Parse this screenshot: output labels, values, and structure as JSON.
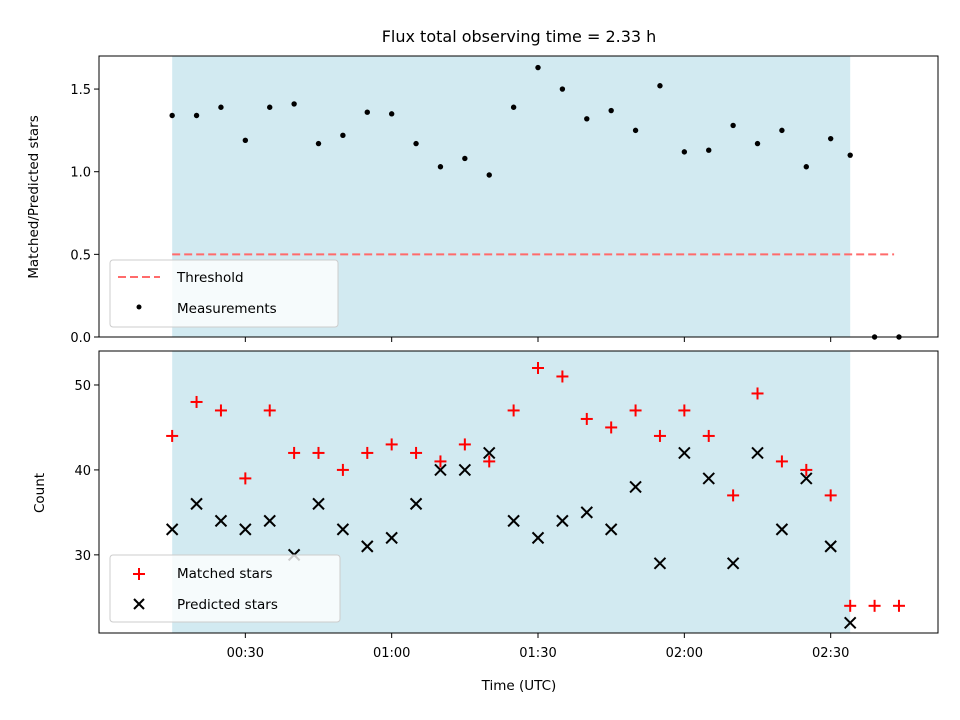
{
  "title": "Flux total observing time = 2.33 h",
  "colors": {
    "band": "#add8e6",
    "threshold": "#ff6b6b",
    "measurement": "#000000",
    "matched": "#ff0000",
    "predicted": "#000000"
  },
  "chart_data": [
    {
      "type": "scatter",
      "ylabel": "Matched/Predicted stars",
      "xlabel": "",
      "ylim": [
        0,
        1.7
      ],
      "yticks": [
        "0.0",
        "0.5",
        "1.0",
        "1.5"
      ],
      "grid": false,
      "legend_position": "lower-left",
      "shaded_band": {
        "x_start": "00:15",
        "x_end": "02:34"
      },
      "threshold": {
        "name": "Threshold",
        "value": 0.5,
        "x_start": "00:15",
        "x_end": "02:43"
      },
      "series": [
        {
          "name": "Measurements",
          "x": [
            "00:15",
            "00:20",
            "00:25",
            "00:30",
            "00:35",
            "00:40",
            "00:45",
            "00:50",
            "00:55",
            "01:00",
            "01:05",
            "01:10",
            "01:15",
            "01:20",
            "01:25",
            "01:30",
            "01:35",
            "01:40",
            "01:45",
            "01:50",
            "01:55",
            "02:00",
            "02:05",
            "02:10",
            "02:15",
            "02:20",
            "02:25",
            "02:30",
            "02:34",
            "02:39",
            "02:44"
          ],
          "values": [
            1.34,
            1.34,
            1.39,
            1.19,
            1.39,
            1.41,
            1.17,
            1.22,
            1.36,
            1.35,
            1.17,
            1.03,
            1.08,
            0.98,
            1.39,
            1.63,
            1.5,
            1.32,
            1.37,
            1.25,
            1.52,
            1.12,
            1.13,
            1.28,
            1.17,
            1.25,
            1.03,
            1.2,
            1.1,
            0.0,
            0.0
          ]
        }
      ]
    },
    {
      "type": "scatter",
      "ylabel": "Count",
      "xlabel": "Time (UTC)",
      "ylim": [
        20.8,
        54
      ],
      "yticks": [
        "30",
        "40",
        "50"
      ],
      "xticks": [
        "00:30",
        "01:00",
        "01:30",
        "02:00",
        "02:30"
      ],
      "grid": false,
      "legend_position": "lower-left",
      "shaded_band": {
        "x_start": "00:15",
        "x_end": "02:34"
      },
      "series": [
        {
          "name": "Matched stars",
          "x": [
            "00:15",
            "00:20",
            "00:25",
            "00:30",
            "00:35",
            "00:40",
            "00:45",
            "00:50",
            "00:55",
            "01:00",
            "01:05",
            "01:10",
            "01:15",
            "01:20",
            "01:25",
            "01:30",
            "01:35",
            "01:40",
            "01:45",
            "01:50",
            "01:55",
            "02:00",
            "02:05",
            "02:10",
            "02:15",
            "02:20",
            "02:25",
            "02:30",
            "02:34",
            "02:39",
            "02:44"
          ],
          "values": [
            44,
            48,
            47,
            39,
            47,
            42,
            42,
            40,
            42,
            43,
            42,
            41,
            43,
            41,
            47,
            52,
            51,
            46,
            45,
            47,
            44,
            47,
            44,
            37,
            49,
            41,
            40,
            37,
            24,
            24,
            24
          ]
        },
        {
          "name": "Predicted stars",
          "x": [
            "00:15",
            "00:20",
            "00:25",
            "00:30",
            "00:35",
            "00:40",
            "00:45",
            "00:50",
            "00:55",
            "01:00",
            "01:05",
            "01:10",
            "01:15",
            "01:20",
            "01:25",
            "01:30",
            "01:35",
            "01:40",
            "01:45",
            "01:50",
            "01:55",
            "02:00",
            "02:05",
            "02:10",
            "02:15",
            "02:20",
            "02:25",
            "02:30",
            "02:34"
          ],
          "values": [
            33,
            36,
            34,
            33,
            34,
            30,
            36,
            33,
            31,
            32,
            36,
            40,
            40,
            42,
            34,
            32,
            34,
            35,
            33,
            38,
            29,
            42,
            39,
            29,
            42,
            33,
            39,
            31,
            22
          ]
        }
      ]
    }
  ]
}
